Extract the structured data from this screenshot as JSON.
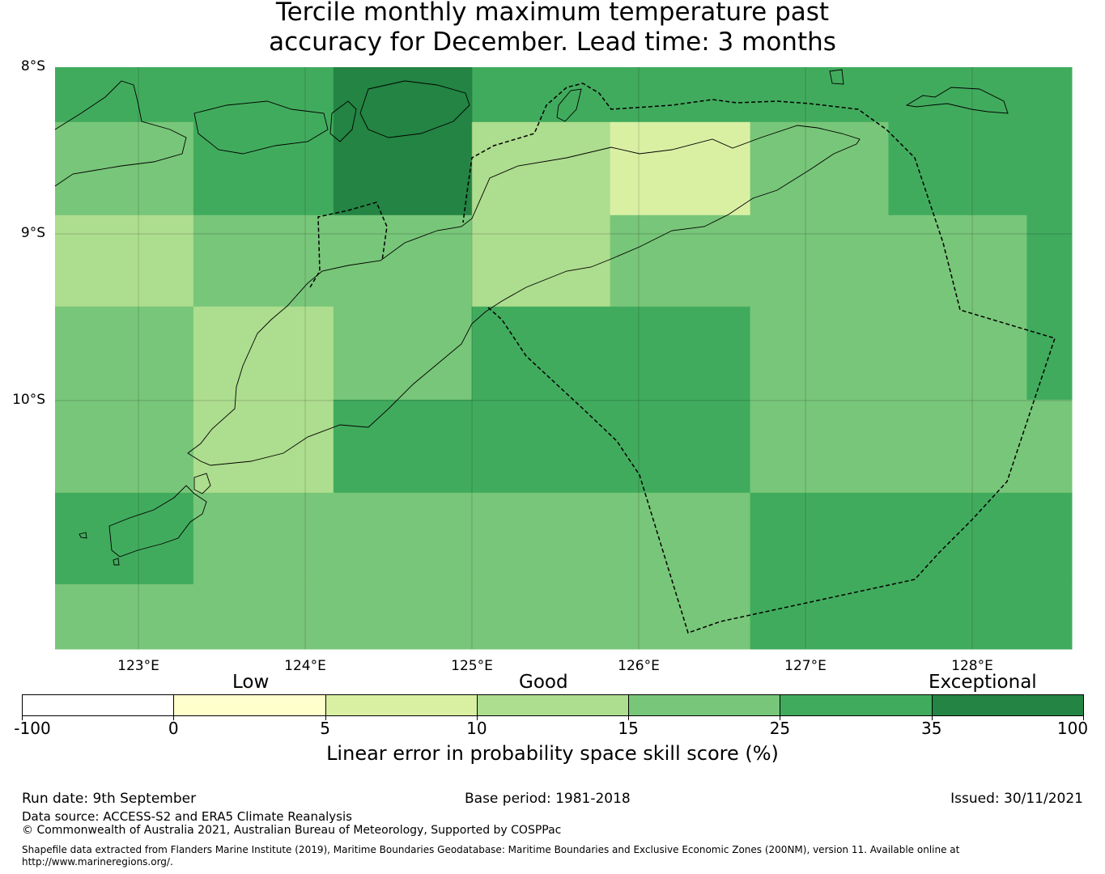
{
  "title": {
    "line1": "Tercile monthly maximum temperature past",
    "line2": "accuracy for December. Lead time: 3 months"
  },
  "map": {
    "lat_labels": [
      "8°S",
      "9°S",
      "10°S"
    ],
    "lon_labels": [
      "123°E",
      "124°E",
      "125°E",
      "126°E",
      "127°E",
      "128°E"
    ],
    "lon_range": [
      122.5,
      128.6
    ],
    "lat_range": [
      -8.0,
      -11.5
    ],
    "grid_cols_lon": [
      122.5,
      123.33,
      124.17,
      125.0,
      125.83,
      126.67,
      127.5,
      128.33,
      128.6
    ],
    "grid_rows_lat": [
      -8.0,
      -8.33,
      -8.89,
      -9.44,
      -10.0,
      -10.56,
      -11.11,
      -11.5
    ],
    "cell_scores": [
      [
        25,
        25,
        35,
        25,
        25,
        25,
        25,
        25
      ],
      [
        15,
        25,
        35,
        10,
        5,
        15,
        25,
        25
      ],
      [
        10,
        15,
        15,
        10,
        15,
        15,
        15,
        25
      ],
      [
        15,
        10,
        15,
        25,
        25,
        15,
        15,
        25
      ],
      [
        15,
        10,
        25,
        25,
        25,
        15,
        15,
        15
      ],
      [
        25,
        15,
        15,
        15,
        15,
        25,
        25,
        25
      ],
      [
        15,
        15,
        15,
        15,
        15,
        25,
        25,
        25
      ]
    ]
  },
  "colorbar": {
    "category_labels": [
      "Low",
      "Good",
      "Exceptional"
    ],
    "tick_labels": [
      "-100",
      "0",
      "5",
      "10",
      "15",
      "25",
      "35",
      "100"
    ],
    "colors": [
      "#ffffff",
      "#ffffcc",
      "#d9f0a3",
      "#addd8e",
      "#78c679",
      "#41ab5d",
      "#238443"
    ],
    "label": "Linear error in probability space skill score (%)"
  },
  "footer": {
    "run_date": "Run date: 9th September",
    "base_period": "Base period: 1981-2018",
    "issued": "Issued: 30/11/2021",
    "data_source": "Data source: ACCESS-S2 and ERA5 Climate Reanalysis",
    "copyright": "© Commonwealth of Australia 2021, Australian Bureau of Meteorology, Supported by COSPPac",
    "shapefile_line1": "Shapefile data extracted from Flanders Marine Institute (2019), Maritime Boundaries Geodatabase: Maritime Boundaries and Exclusive Economic Zones (200NM), version 11. Available online at",
    "shapefile_line2": "http://www.marineregions.org/."
  }
}
